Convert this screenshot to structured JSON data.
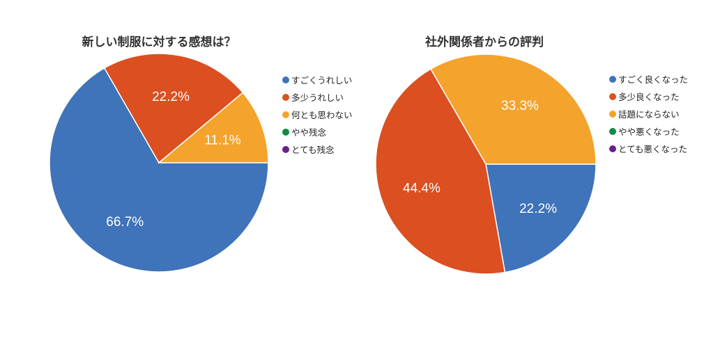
{
  "chart_data": [
    {
      "type": "pie",
      "title": "新しい制服に対する感想は？",
      "categories": [
        "すごくうれしい",
        "多少うれしい",
        "何とも思わない",
        "やや残念",
        "とても残念"
      ],
      "values": [
        66.7,
        22.2,
        11.1,
        0,
        0
      ],
      "data_labels": [
        "66.7%",
        "22.2%",
        "11.1%",
        "",
        ""
      ],
      "colors": [
        "#3f73ba",
        "#db4f20",
        "#f4a32c",
        "#0e8a43",
        "#6a1f8e"
      ],
      "start_angle": "3 o'clock",
      "direction": "clockwise",
      "legend_position": "right"
    },
    {
      "type": "pie",
      "title": "社外関係者からの評判",
      "categories": [
        "すごく良くなった",
        "多少良くなった",
        "話題にならない",
        "やや悪くなった",
        "とても悪くなった"
      ],
      "values": [
        22.2,
        44.4,
        33.3,
        0,
        0
      ],
      "data_labels": [
        "22.2%",
        "44.4%",
        "33.3%",
        "",
        ""
      ],
      "colors": [
        "#3f73ba",
        "#db4f20",
        "#f4a32c",
        "#0e8a43",
        "#6a1f8e"
      ],
      "start_angle": "3 o'clock",
      "direction": "clockwise",
      "legend_position": "right"
    }
  ],
  "charts": [
    {
      "title": "新しい制服に対する感想は？",
      "legend": [
        {
          "label": "すごくうれしい",
          "color": "#3f73ba"
        },
        {
          "label": "多少うれしい",
          "color": "#db4f20"
        },
        {
          "label": "何とも思わない",
          "color": "#f4a32c"
        },
        {
          "label": "やや残念",
          "color": "#0e8a43"
        },
        {
          "label": "とても残念",
          "color": "#6a1f8e"
        }
      ]
    },
    {
      "title": "社外関係者からの評判",
      "legend": [
        {
          "label": "すごく良くなった",
          "color": "#3f73ba"
        },
        {
          "label": "多少良くなった",
          "color": "#db4f20"
        },
        {
          "label": "話題にならない",
          "color": "#f4a32c"
        },
        {
          "label": "やや悪くなった",
          "color": "#0e8a43"
        },
        {
          "label": "とても悪くなった",
          "color": "#6a1f8e"
        }
      ]
    }
  ]
}
